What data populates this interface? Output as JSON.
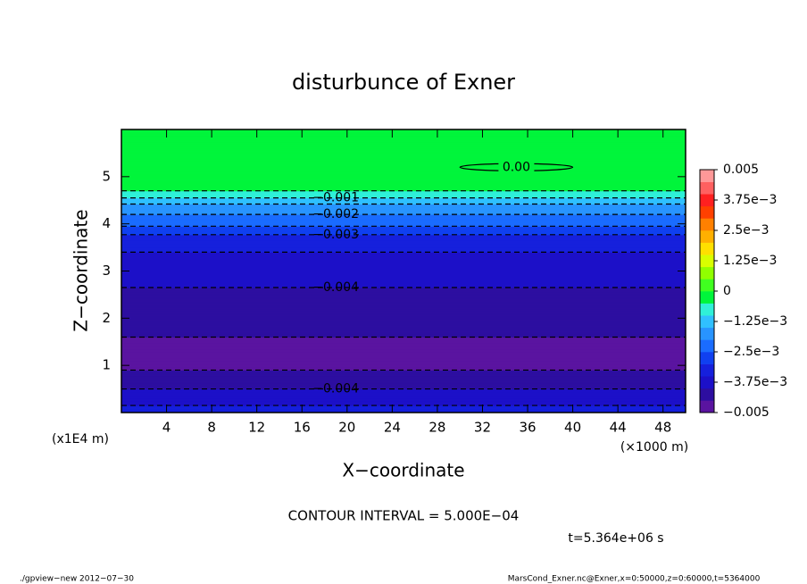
{
  "chart_data": {
    "type": "contour-profile",
    "title": "disturbunce of Exner",
    "xlabel": "X-coordinate",
    "ylabel": "Z-coordinate",
    "xunit": "(×1000 m)",
    "yunit": "(x1E4 m)",
    "xlim": [
      0,
      50
    ],
    "xticks": [
      4,
      8,
      12,
      16,
      20,
      24,
      28,
      32,
      36,
      40,
      44,
      48
    ],
    "ylim": [
      0,
      6
    ],
    "yticks": [
      1,
      2,
      3,
      4,
      5
    ],
    "z": [
      0,
      0.15,
      0.5,
      0.9,
      1.25,
      1.6,
      2.05,
      2.65,
      3.4,
      3.77,
      3.95,
      4.2,
      4.42,
      4.55,
      4.7,
      5.2,
      6
    ],
    "values": [
      -0.0034,
      -0.0035,
      -0.004,
      -0.0045,
      -0.0048,
      -0.0045,
      -0.0042,
      -0.004,
      -0.0035,
      -0.003,
      -0.0025,
      -0.002,
      -0.0015,
      -0.001,
      -0.0005,
      -0.0001,
      -0.0002
    ],
    "levels": [
      -0.005,
      -0.0045,
      -0.004,
      -0.0035,
      -0.003,
      -0.0025,
      -0.002,
      -0.0015,
      -0.001,
      -0.0005,
      0,
      0.0005,
      0.001,
      0.0015,
      0.002,
      0.0025,
      0.003,
      0.0035,
      0.004,
      0.0045,
      0.005
    ],
    "colors": [
      "#5a14a0",
      "#2d0ea0",
      "#1c10c8",
      "#1620dc",
      "#1040f0",
      "#1a6cff",
      "#2894ff",
      "#30c0ff",
      "#30f0d8",
      "#00f53b",
      "#40ff20",
      "#90ff00",
      "#d8ff00",
      "#ffe000",
      "#ffb000",
      "#ff8000",
      "#ff4000",
      "#ff2020",
      "#ff6060",
      "#ff9898"
    ],
    "clim": [
      -0.005,
      0.005
    ],
    "cticks": [
      {
        "value": -0.005,
        "label": "-0.005"
      },
      {
        "value": -0.00375,
        "label": "-3.75e-3"
      },
      {
        "value": -0.0025,
        "label": "-2.5e-3"
      },
      {
        "value": -0.00125,
        "label": "-1.25e-3"
      },
      0,
      {
        "value": 0.00125,
        "label": "1.25e-3"
      },
      {
        "value": 0.0025,
        "label": "2.5e-3"
      },
      {
        "value": 0.00375,
        "label": "3.75e-3"
      },
      {
        "value": 0.005,
        "label": "0.005"
      }
    ],
    "contour_labels": [
      {
        "value": -0.001,
        "label": "-0.001"
      },
      {
        "value": -0.002,
        "label": "-0.002"
      },
      {
        "value": -0.003,
        "label": "-0.003"
      },
      {
        "value": -0.004,
        "label": "-0.004"
      }
    ],
    "zero_contour": {
      "label": "0.00",
      "x": [
        30,
        40
      ],
      "z": 5.2
    },
    "contour_interval": "CONTOUR INTERVAL = 5.000E-04",
    "time": "t=5.364e+06 s",
    "footer_left": "./gpview-new  2012-07-30",
    "footer_right": "MarsCond_Exner.nc@Exner,x=0:50000,z=0:60000,t=5364000"
  }
}
